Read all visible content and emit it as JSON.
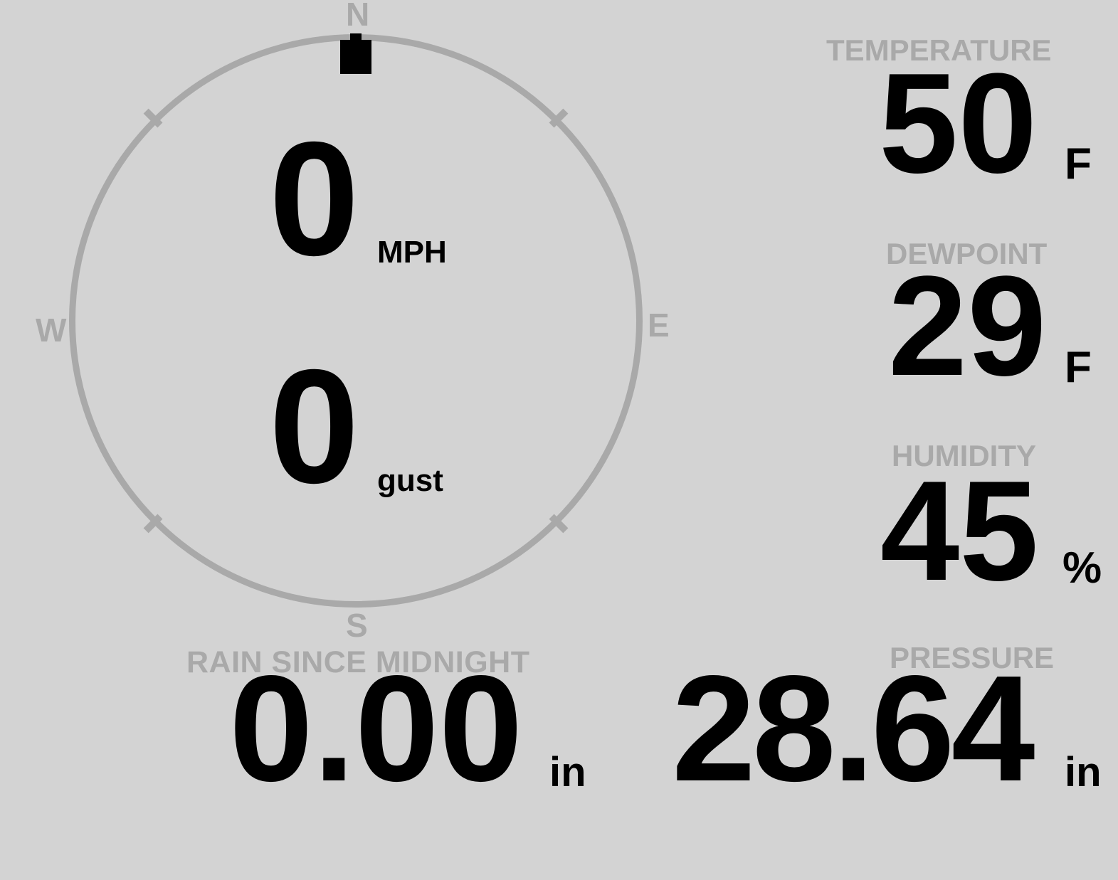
{
  "colors": {
    "background": "#d3d3d3",
    "muted_gray": "#a9a9a9",
    "value_black": "#000000"
  },
  "wind": {
    "compass": {
      "north": "N",
      "south": "S",
      "east": "E",
      "west": "W"
    },
    "direction": "N",
    "direction_deg": 0,
    "speed": "0",
    "speed_unit": "MPH",
    "gust": "0",
    "gust_unit": "gust"
  },
  "metrics": {
    "temperature": {
      "label": "TEMPERATURE",
      "value": "50",
      "unit": "F"
    },
    "dewpoint": {
      "label": "DEWPOINT",
      "value": "29",
      "unit": "F"
    },
    "humidity": {
      "label": "HUMIDITY",
      "value": "45",
      "unit": "%"
    },
    "rain": {
      "label": "RAIN SINCE MIDNIGHT",
      "value": "0.00",
      "unit": "in"
    },
    "pressure": {
      "label": "PRESSURE",
      "value": "28.64",
      "unit": "in"
    }
  }
}
